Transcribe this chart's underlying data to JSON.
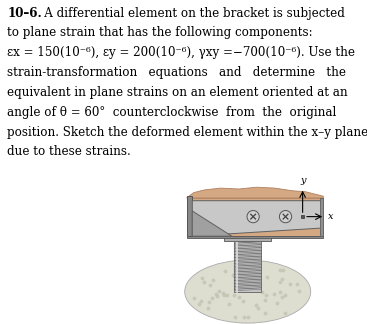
{
  "background_color": "#ffffff",
  "wood_color": "#d4a882",
  "wood_edge_color": "#b08060",
  "bracket_face_color": "#c8c8c8",
  "bracket_dark": "#909090",
  "bracket_edge": "#606060",
  "ground_color": "#ddddd0",
  "ground_edge": "#aaaaaa",
  "bolt_color": "#b0b0b0",
  "bolt_edge": "#707070",
  "screw_face": "#c0c0c0",
  "screw_edge": "#555555",
  "flange_color": "#a8a8a8",
  "text_lines": [
    {
      "bold": "10–6.",
      "normal": "   A differential element on the bracket is subjected"
    },
    {
      "bold": "",
      "normal": "to plane strain that has the following components:"
    },
    {
      "bold": "",
      "normal": "εx = 150(10⁻⁶), εy = 200(10⁻⁶), γxy =−700(10⁻⁶). Use the"
    },
    {
      "bold": "",
      "normal": "strain-transformation   equations   and   determine   the"
    },
    {
      "bold": "",
      "normal": "equivalent in plane strains on an element oriented at an"
    },
    {
      "bold": "",
      "normal": "angle of θ = 60°  counterclockwise  from  the  original"
    },
    {
      "bold": "",
      "normal": "position. Sketch the deformed element within the x–y plane"
    },
    {
      "bold": "",
      "normal": "due to these strains."
    }
  ]
}
